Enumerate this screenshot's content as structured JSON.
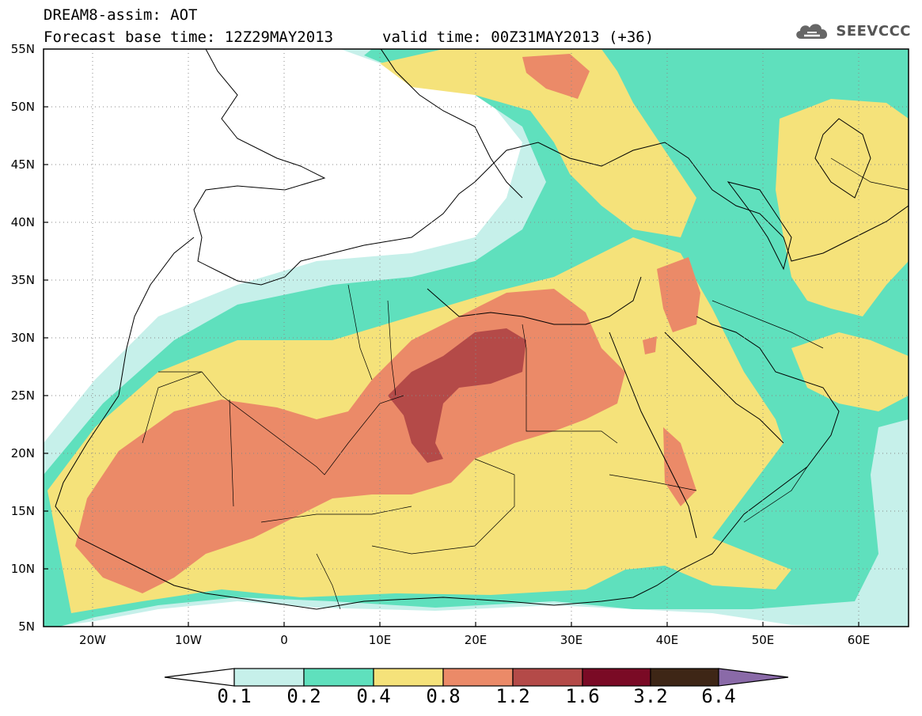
{
  "title": {
    "line1": "DREAM8-assim: AOT",
    "base_time": "Forecast base time: 12Z29MAY2013",
    "valid_time": "valid time: 00Z31MAY2013 (+36)"
  },
  "logo": {
    "text": "SEEVCCC",
    "icon": "cloud-icon"
  },
  "map": {
    "lat_labels": [
      "55N",
      "50N",
      "45N",
      "40N",
      "35N",
      "30N",
      "25N",
      "20N",
      "15N",
      "10N",
      "5N"
    ],
    "lon_labels": [
      "20W",
      "10W",
      "0",
      "10E",
      "20E",
      "30E",
      "40E",
      "50E",
      "60E"
    ],
    "lat_range": [
      5,
      55
    ],
    "lon_range": [
      -25,
      65
    ],
    "grid": "dotted"
  },
  "colorbar": {
    "levels": [
      "0.1",
      "0.2",
      "0.4",
      "0.8",
      "1.2",
      "1.6",
      "3.2",
      "6.4"
    ],
    "colors": [
      "#ffffff",
      "#c6f0ea",
      "#5fe0bd",
      "#f5e27a",
      "#eb8a68",
      "#b44a48",
      "#7a0a25",
      "#3e2616",
      "#8a6aa8"
    ]
  },
  "palette": {
    "c01": "#c6f0ea",
    "c02": "#5fe0bd",
    "c04": "#f5e27a",
    "c08": "#eb8a68",
    "c12": "#b44a48"
  }
}
